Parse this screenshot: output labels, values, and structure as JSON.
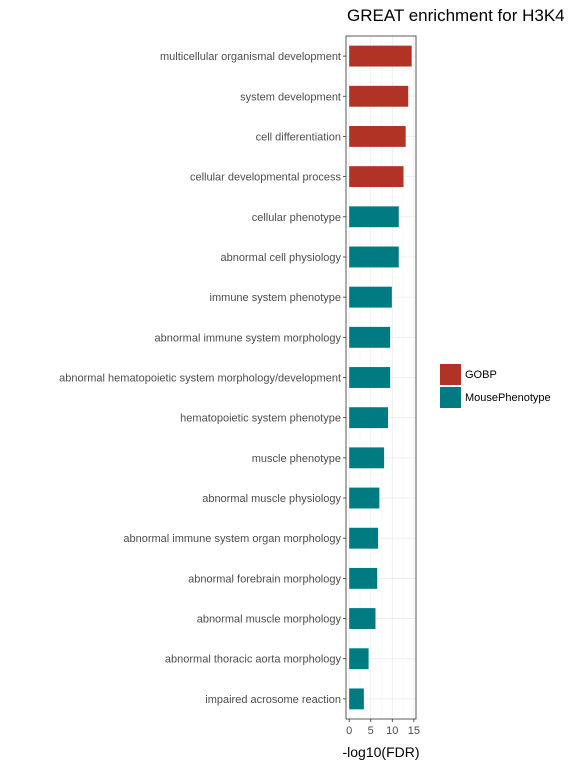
{
  "chart_data": {
    "type": "bar",
    "orientation": "horizontal",
    "title": "GREAT enrichment for H3K4",
    "xlabel": "-log10(FDR)",
    "ylabel": "",
    "xlim": [
      0,
      15
    ],
    "xticks": [
      0,
      5,
      10,
      15
    ],
    "grid": true,
    "legend_position": "right",
    "categories": [
      "multicellular organismal development",
      "system development",
      "cell differentiation",
      "cellular developmental process",
      "cellular phenotype",
      "abnormal cell physiology",
      "immune system phenotype",
      "abnormal immune system morphology",
      "abnormal hematopoietic system morphology/development",
      "hematopoietic system phenotype",
      "muscle phenotype",
      "abnormal muscle physiology",
      "abnormal immune system organ morphology",
      "abnormal forebrain morphology",
      "abnormal muscle morphology",
      "abnormal thoracic aorta morphology",
      "impaired acrosome reaction"
    ],
    "values": [
      14.5,
      13.7,
      13.1,
      12.6,
      11.5,
      11.5,
      9.9,
      9.5,
      9.5,
      9.0,
      8.1,
      7.0,
      6.7,
      6.5,
      6.1,
      4.5,
      3.4
    ],
    "groups": [
      "GOBP",
      "GOBP",
      "GOBP",
      "GOBP",
      "MousePhenotype",
      "MousePhenotype",
      "MousePhenotype",
      "MousePhenotype",
      "MousePhenotype",
      "MousePhenotype",
      "MousePhenotype",
      "MousePhenotype",
      "MousePhenotype",
      "MousePhenotype",
      "MousePhenotype",
      "MousePhenotype",
      "MousePhenotype"
    ],
    "legend": [
      {
        "name": "GOBP",
        "color": "#b03326"
      },
      {
        "name": "MousePhenotype",
        "color": "#007b82"
      }
    ]
  }
}
